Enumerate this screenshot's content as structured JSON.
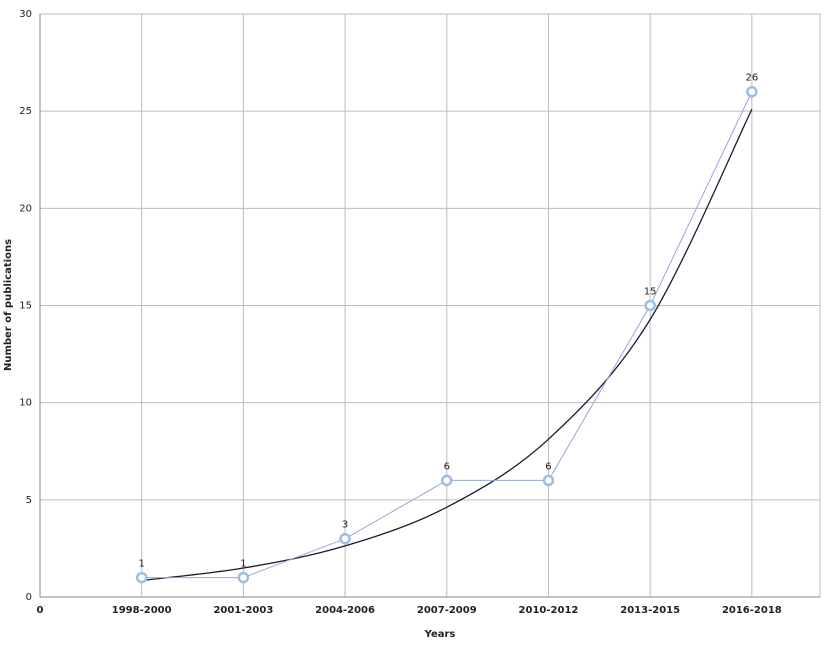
{
  "chart_data": {
    "type": "line",
    "x_label": "Years",
    "y_label": "Number of publications",
    "x": [
      1,
      2,
      3,
      4,
      5,
      6,
      7
    ],
    "series": [
      {
        "name": "",
        "color": "#97a6dd",
        "marker_color": "#9dbde3",
        "markers": true,
        "show_value_labels": true,
        "values": [
          1,
          1,
          3,
          6,
          6,
          15,
          26
        ]
      },
      {
        "color": "#1a1a2e",
        "markers": false,
        "smooth": true,
        "values": [
          0.85,
          1.49,
          2.63,
          4.62,
          8.12,
          14.28,
          25.1
        ]
      }
    ],
    "xlim": [
      0,
      7.67
    ],
    "xticks": [
      0,
      {
        "value": 1,
        "label": "1998-2000"
      },
      {
        "value": 2,
        "label": "2001-2003"
      },
      {
        "value": 3,
        "label": "2004-2006"
      },
      {
        "value": 4,
        "label": "2007-2009"
      },
      {
        "value": 5,
        "label": "2010-2012"
      },
      {
        "value": 6,
        "label": "2013-2015"
      },
      {
        "value": 7,
        "label": "2016-2018"
      }
    ],
    "ylim": [
      0,
      30
    ],
    "yticks": [
      0,
      5,
      10,
      15,
      20,
      25,
      30
    ],
    "grid": true
  }
}
